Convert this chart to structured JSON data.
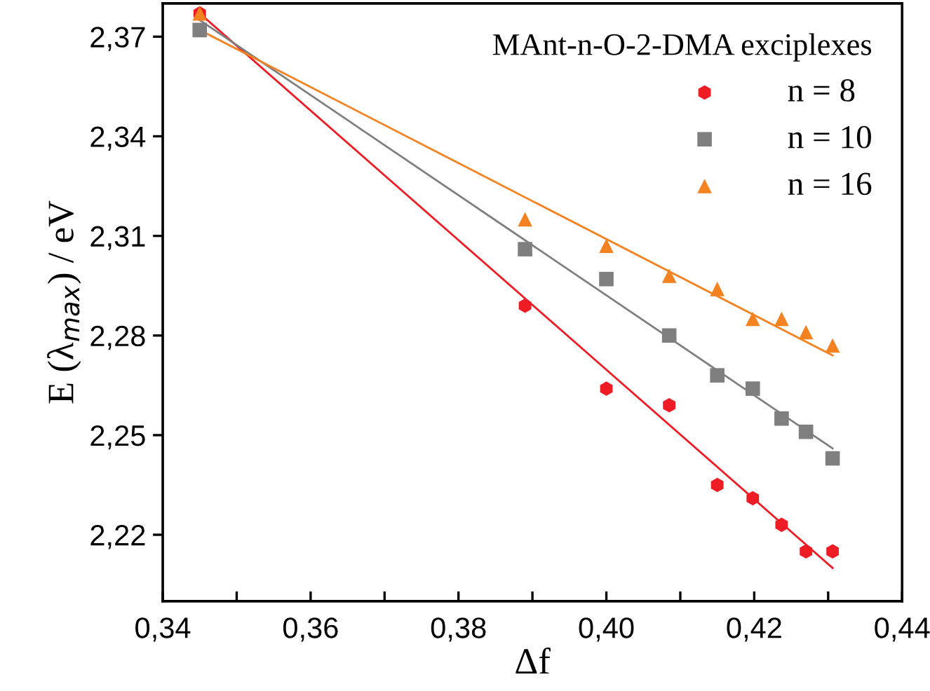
{
  "chart_data": {
    "type": "scatter",
    "xlabel": "Δf",
    "ylabel": "E (λ$_{max}$) / eV",
    "legend_title": "MAnt-n-O-2-DMA exciplexes",
    "series": [
      {
        "name": "n = 8",
        "color": "#ee1c25",
        "marker": "circle",
        "x": [
          0.345,
          0.389,
          0.4,
          0.4085,
          0.415,
          0.4198,
          0.4237,
          0.427,
          0.4306
        ],
        "values": [
          2.377,
          2.289,
          2.264,
          2.259,
          2.235,
          2.231,
          2.223,
          2.215,
          2.215
        ]
      },
      {
        "name": "n = 10",
        "color": "#7f7f7f",
        "marker": "square",
        "x": [
          0.345,
          0.389,
          0.4,
          0.4085,
          0.415,
          0.4198,
          0.4237,
          0.427,
          0.4306
        ],
        "values": [
          2.372,
          2.306,
          2.297,
          2.28,
          2.268,
          2.264,
          2.255,
          2.251,
          2.243
        ]
      },
      {
        "name": "n = 16",
        "color": "#f58220",
        "marker": "triangle",
        "x": [
          0.345,
          0.389,
          0.4,
          0.4085,
          0.415,
          0.4198,
          0.4237,
          0.427,
          0.4306
        ],
        "values": [
          2.377,
          2.315,
          2.307,
          2.298,
          2.294,
          2.285,
          2.285,
          2.281,
          2.277
        ]
      },
      {
        "type": "line",
        "color": "#ee1c25",
        "x": [
          0.345,
          0.4306
        ],
        "values": [
          2.377,
          2.21
        ]
      },
      {
        "type": "line",
        "color": "#7f7f7f",
        "x": [
          0.345,
          0.4306
        ],
        "values": [
          2.375,
          2.246
        ]
      },
      {
        "type": "line",
        "color": "#f58220",
        "x": [
          0.345,
          0.4306
        ],
        "values": [
          2.372,
          2.274
        ]
      }
    ],
    "xlim": [
      0.34,
      0.44
    ],
    "ylim": [
      2.2,
      2.38
    ],
    "xticks": [
      {
        "value": 0.34,
        "label": "0,34"
      },
      {
        "value": 0.35,
        "label": null
      },
      {
        "value": 0.36,
        "label": "0,36"
      },
      {
        "value": 0.37,
        "label": null
      },
      {
        "value": 0.38,
        "label": "0,38"
      },
      {
        "value": 0.39,
        "label": null
      },
      {
        "value": 0.4,
        "label": "0,40"
      },
      {
        "value": 0.41,
        "label": null
      },
      {
        "value": 0.42,
        "label": "0,42"
      },
      {
        "value": 0.43,
        "label": null
      },
      {
        "value": 0.44,
        "label": "0,44"
      }
    ],
    "yticks": [
      {
        "value": 2.22,
        "label": "2,22"
      },
      {
        "value": 2.25,
        "label": "2,25"
      },
      {
        "value": 2.28,
        "label": "2,28"
      },
      {
        "value": 2.31,
        "label": "2,31"
      },
      {
        "value": 2.34,
        "label": "2,34"
      },
      {
        "value": 2.37,
        "label": "2,37"
      }
    ],
    "grid": false,
    "legend": "top right",
    "line_style": "solid"
  }
}
